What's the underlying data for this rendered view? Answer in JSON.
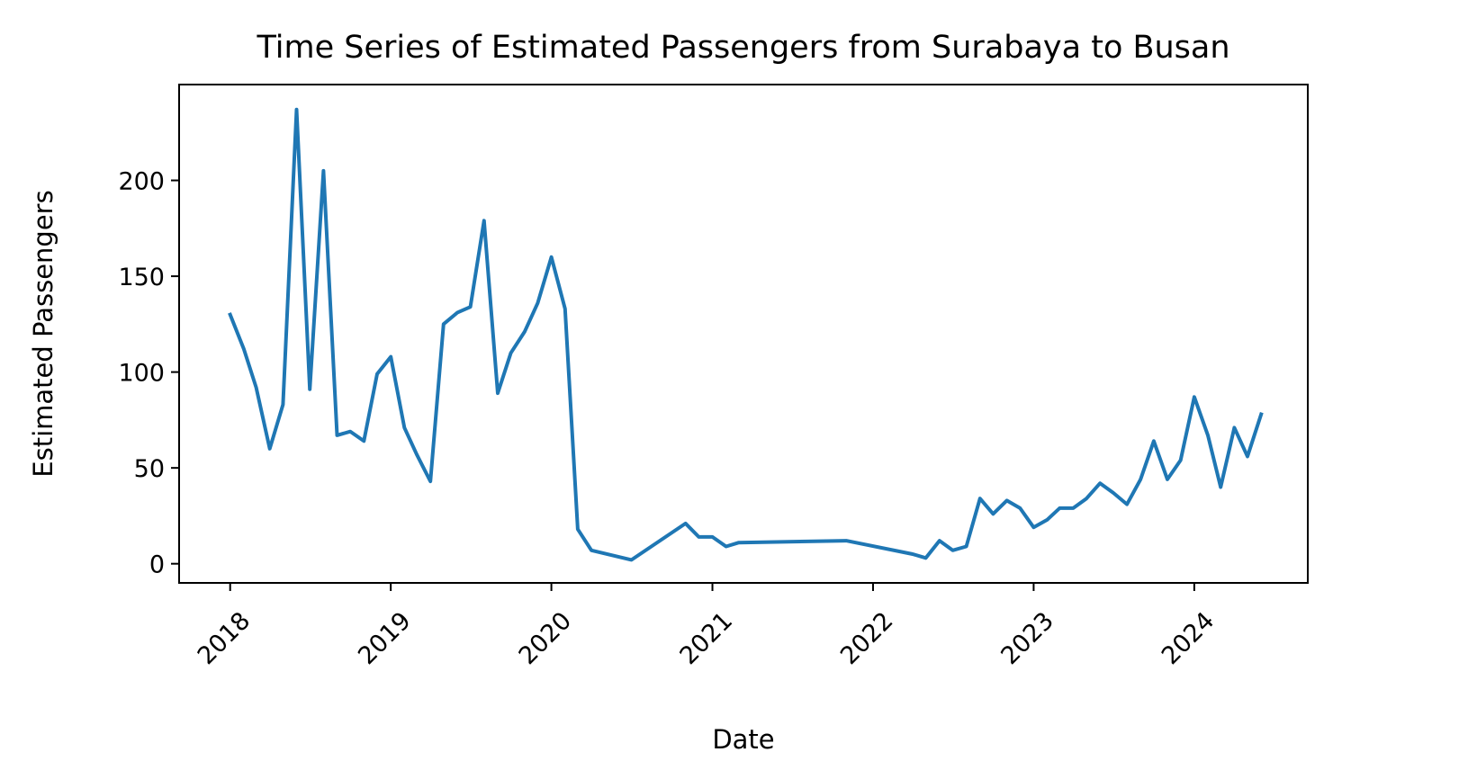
{
  "chart_data": {
    "type": "line",
    "title": "Time Series of Estimated Passengers from Surabaya to Busan",
    "xlabel": "Date",
    "ylabel": "Estimated Passengers",
    "x_ticks": [
      "2018",
      "2019",
      "2020",
      "2021",
      "2022",
      "2023",
      "2024"
    ],
    "y_ticks": [
      "0",
      "50",
      "100",
      "150",
      "200"
    ],
    "ylim": [
      -10,
      250
    ],
    "xlim": [
      "2017-09-07",
      "2024-09-15"
    ],
    "grid": false,
    "line_color": "#1f77b4",
    "series": [
      {
        "x": [
          "2018-01-01",
          "2018-02-01",
          "2018-03-01",
          "2018-04-01",
          "2018-05-01",
          "2018-06-01",
          "2018-07-01",
          "2018-08-01",
          "2018-09-01",
          "2018-10-01",
          "2018-11-01",
          "2018-12-01",
          "2019-01-01",
          "2019-02-01",
          "2019-03-01",
          "2019-04-01",
          "2019-05-01",
          "2019-06-01",
          "2019-07-01",
          "2019-08-01",
          "2019-09-01",
          "2019-10-01",
          "2019-11-01",
          "2019-12-01",
          "2020-01-01",
          "2020-02-01",
          "2020-03-01",
          "2020-04-01",
          "2020-07-01",
          "2020-11-01",
          "2020-12-01",
          "2021-01-01",
          "2021-02-01",
          "2021-03-01",
          "2021-11-01",
          "2022-04-01",
          "2022-05-01",
          "2022-06-01",
          "2022-07-01",
          "2022-08-01",
          "2022-09-01",
          "2022-10-01",
          "2022-11-01",
          "2022-12-01",
          "2023-01-01",
          "2023-02-01",
          "2023-03-01",
          "2023-04-01",
          "2023-05-01",
          "2023-06-01",
          "2023-07-01",
          "2023-08-01",
          "2023-09-01",
          "2023-10-01",
          "2023-11-01",
          "2023-12-01",
          "2024-01-01",
          "2024-02-01",
          "2024-03-01",
          "2024-04-01",
          "2024-05-01",
          "2024-06-01"
        ],
        "values": [
          130,
          112,
          92,
          60,
          83,
          237,
          91,
          205,
          67,
          69,
          64,
          99,
          108,
          71,
          57,
          43,
          125,
          131,
          134,
          179,
          89,
          110,
          121,
          136,
          160,
          133,
          18,
          7,
          2,
          21,
          14,
          14,
          9,
          11,
          12,
          5,
          3,
          12,
          7,
          9,
          34,
          26,
          33,
          29,
          19,
          23,
          29,
          29,
          34,
          42,
          37,
          31,
          44,
          64,
          44,
          54,
          87,
          67,
          40,
          71,
          56,
          78
        ]
      }
    ]
  }
}
